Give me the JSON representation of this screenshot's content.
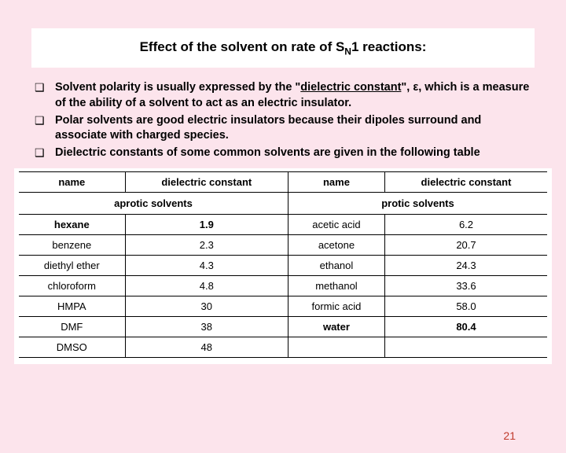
{
  "title": {
    "pre": "Effect of the solvent on rate of S",
    "sub": "N",
    "post": "1 reactions:"
  },
  "bullets": [
    {
      "pre": "Solvent polarity is usually expressed by the \"",
      "underline": "dielectric constant",
      "post": "\", ε, which is a measure of the ability of a solvent to act as an electric insulator."
    },
    {
      "pre": "Polar solvents are good electric insulators because their dipoles surround and associate with charged species.",
      "underline": "",
      "post": ""
    },
    {
      "pre": "Dielectric constants of some common solvents are given in the following table",
      "underline": "",
      "post": ""
    }
  ],
  "table": {
    "headers": [
      "name",
      "dielectric constant",
      "name",
      "dielectric constant"
    ],
    "groups": [
      "aprotic solvents",
      "protic solvents"
    ],
    "rows": [
      {
        "l_name": "hexane",
        "l_val": "1.9",
        "l_bold": true,
        "r_name": "acetic acid",
        "r_val": "6.2",
        "r_bold": false
      },
      {
        "l_name": "benzene",
        "l_val": "2.3",
        "l_bold": false,
        "r_name": "acetone",
        "r_val": "20.7",
        "r_bold": false
      },
      {
        "l_name": "diethyl ether",
        "l_val": "4.3",
        "l_bold": false,
        "r_name": "ethanol",
        "r_val": "24.3",
        "r_bold": false
      },
      {
        "l_name": "chloroform",
        "l_val": "4.8",
        "l_bold": false,
        "r_name": "methanol",
        "r_val": "33.6",
        "r_bold": false
      },
      {
        "l_name": "HMPA",
        "l_val": "30",
        "l_bold": false,
        "r_name": "formic acid",
        "r_val": "58.0",
        "r_bold": false
      },
      {
        "l_name": "DMF",
        "l_val": "38",
        "l_bold": false,
        "r_name": "water",
        "r_val": "80.4",
        "r_bold": true
      },
      {
        "l_name": "DMSO",
        "l_val": "48",
        "l_bold": false,
        "r_name": "",
        "r_val": "",
        "r_bold": false
      }
    ]
  },
  "footer": "21"
}
